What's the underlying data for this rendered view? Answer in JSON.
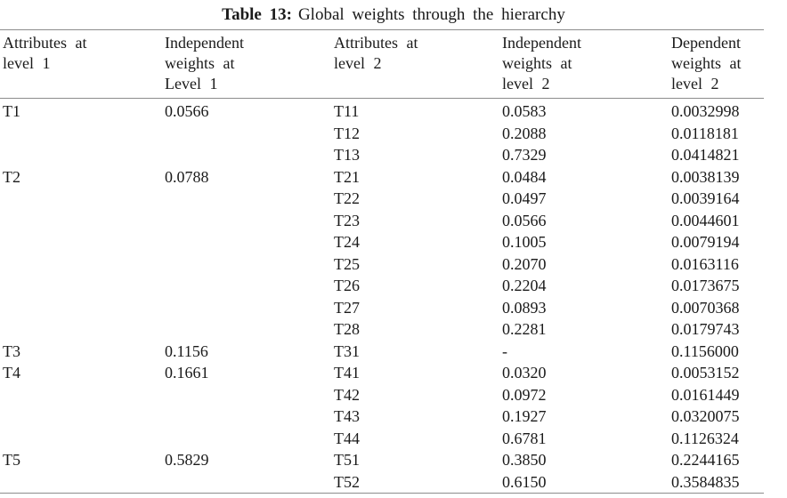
{
  "colors": {
    "background": "#ffffff",
    "text": "#1a1a1a",
    "rule": "#8c8c8c"
  },
  "caption": {
    "label": "Table 13:",
    "text": "Global weights through the hierarchy"
  },
  "table": {
    "columns": [
      "Attributes at\nlevel 1",
      "Independent\nweights at\nLevel 1",
      "Attributes at\nlevel 2",
      "Independent\nweights at\nlevel 2",
      "Dependent\nweights at\nlevel 2"
    ],
    "rows": [
      [
        "T1",
        "0.0566",
        "T11",
        "0.0583",
        "0.0032998"
      ],
      [
        "",
        "",
        "T12",
        "0.2088",
        "0.0118181"
      ],
      [
        "",
        "",
        "T13",
        "0.7329",
        "0.0414821"
      ],
      [
        "T2",
        "0.0788",
        "T21",
        "0.0484",
        "0.0038139"
      ],
      [
        "",
        "",
        "T22",
        "0.0497",
        "0.0039164"
      ],
      [
        "",
        "",
        "T23",
        "0.0566",
        "0.0044601"
      ],
      [
        "",
        "",
        "T24",
        "0.1005",
        "0.0079194"
      ],
      [
        "",
        "",
        "T25",
        "0.2070",
        "0.0163116"
      ],
      [
        "",
        "",
        "T26",
        "0.2204",
        "0.0173675"
      ],
      [
        "",
        "",
        "T27",
        "0.0893",
        "0.0070368"
      ],
      [
        "",
        "",
        "T28",
        "0.2281",
        "0.0179743"
      ],
      [
        "T3",
        "0.1156",
        "T31",
        "-",
        "0.1156000"
      ],
      [
        "T4",
        "0.1661",
        "T41",
        "0.0320",
        "0.0053152"
      ],
      [
        "",
        "",
        "T42",
        "0.0972",
        "0.0161449"
      ],
      [
        "",
        "",
        "T43",
        "0.1927",
        "0.0320075"
      ],
      [
        "",
        "",
        "T44",
        "0.6781",
        "0.1126324"
      ],
      [
        "T5",
        "0.5829",
        "T51",
        "0.3850",
        "0.2244165"
      ],
      [
        "",
        "",
        "T52",
        "0.6150",
        "0.3584835"
      ]
    ]
  }
}
